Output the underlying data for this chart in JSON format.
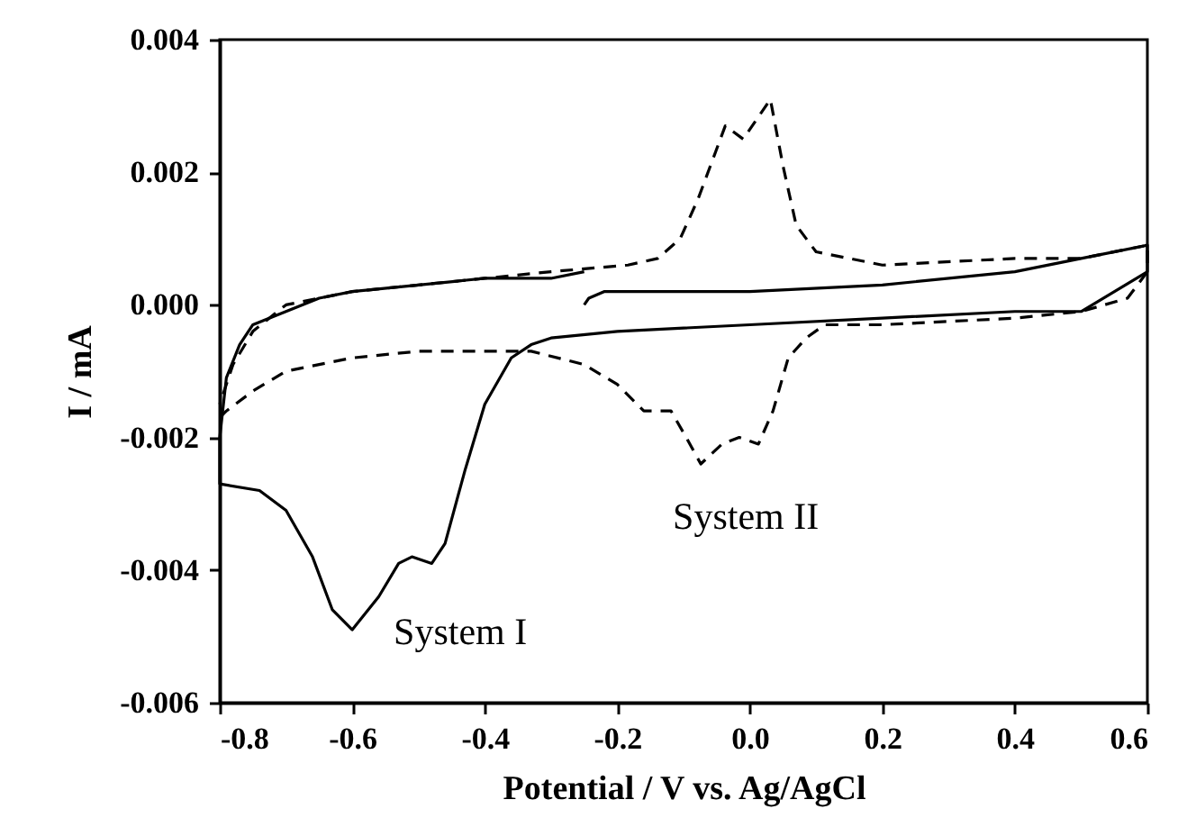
{
  "chart_data": {
    "type": "line",
    "xlabel": "Potential / V vs. Ag/AgCl",
    "ylabel": "I / mA",
    "xlim": [
      -0.8,
      0.6
    ],
    "ylim": [
      -0.006,
      0.004
    ],
    "xticks": [
      -0.8,
      -0.6,
      -0.4,
      -0.2,
      {
        "value": 0,
        "label": "0.0"
      },
      0.2,
      0.4,
      0.6
    ],
    "yticks": [
      -0.006,
      -0.004,
      -0.002,
      {
        "value": 0,
        "label": "0.000"
      },
      0.002,
      0.004
    ],
    "series": [
      {
        "color": "#000000",
        "line_style": "solid",
        "x": [
          -0.25,
          -0.243,
          -0.22,
          -0.1,
          0.0,
          0.2,
          0.4,
          0.5,
          0.6,
          0.6,
          0.5,
          0.4,
          0.2,
          0.0,
          -0.2,
          -0.3,
          -0.33,
          -0.36,
          -0.4,
          -0.43,
          -0.46,
          -0.48,
          -0.51,
          -0.53,
          -0.56,
          -0.6,
          -0.63,
          -0.66,
          -0.7,
          -0.74,
          -0.8,
          -0.8,
          -0.79,
          -0.77,
          -0.75,
          -0.7,
          -0.65,
          -0.6,
          -0.5,
          -0.4,
          -0.3,
          -0.25
        ],
        "values": [
          0.0,
          0.0001,
          0.0002,
          0.0002,
          0.0002,
          0.0003,
          0.0005,
          0.0007,
          0.0009,
          0.0005,
          -0.0001,
          -0.0001,
          -0.0002,
          -0.0003,
          -0.0004,
          -0.0005,
          -0.0006,
          -0.0008,
          -0.0015,
          -0.0025,
          -0.0036,
          -0.0039,
          -0.0038,
          -0.0039,
          -0.0044,
          -0.0049,
          -0.0046,
          -0.0038,
          -0.0031,
          -0.0028,
          -0.0027,
          -0.002,
          -0.0011,
          -0.0006,
          -0.0003,
          -0.0001,
          0.0001,
          0.0002,
          0.0003,
          0.0004,
          0.0004,
          0.0005
        ]
      },
      {
        "color": "#000000",
        "line_style": "dashed",
        "x": [
          -0.8,
          -0.79,
          -0.75,
          -0.7,
          -0.6,
          -0.5,
          -0.4,
          -0.33,
          -0.25,
          -0.2,
          -0.16,
          -0.119,
          -0.096,
          -0.074,
          -0.042,
          -0.016,
          0.013,
          0.035,
          0.058,
          0.085,
          0.113,
          0.2,
          0.4,
          0.5,
          0.57,
          0.6,
          0.6,
          0.5,
          0.4,
          0.2,
          0.1,
          0.07,
          0.05,
          0.031,
          -0.01,
          -0.037,
          -0.078,
          -0.105,
          -0.139,
          -0.184,
          -0.3,
          -0.4,
          -0.5,
          -0.6,
          -0.7,
          -0.75,
          -0.78,
          -0.8
        ],
        "values": [
          -0.0017,
          -0.0016,
          -0.0013,
          -0.001,
          -0.0008,
          -0.0007,
          -0.0007,
          -0.0007,
          -0.0009,
          -0.0012,
          -0.0016,
          -0.0016,
          -0.002,
          -0.0024,
          -0.0021,
          -0.002,
          -0.0021,
          -0.0016,
          -0.0008,
          -0.0005,
          -0.0003,
          -0.0003,
          -0.0002,
          -0.0001,
          0.0001,
          0.0005,
          0.0009,
          0.0007,
          0.0007,
          0.0006,
          0.0008,
          0.0012,
          0.0021,
          0.0031,
          0.0025,
          0.0027,
          0.0016,
          0.001,
          0.0007,
          0.0006,
          0.0005,
          0.0004,
          0.0003,
          0.0002,
          0.0,
          -0.0004,
          -0.0009,
          -0.0015
        ]
      }
    ],
    "annotations": [
      "System I",
      "System II"
    ]
  }
}
